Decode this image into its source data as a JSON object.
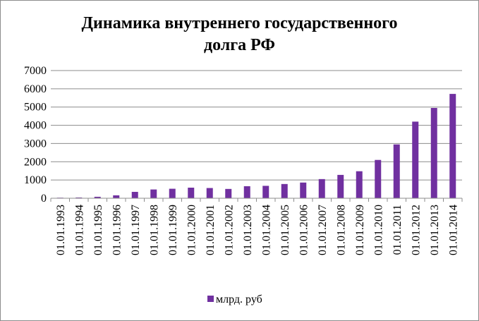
{
  "chart_data": {
    "type": "bar",
    "title_lines": [
      "Динамика внутреннего государственного",
      "долга РФ"
    ],
    "categories": [
      "01.01.1993",
      "01.01.1994",
      "01.01.1995",
      "01.01.1996",
      "01.01.1997",
      "01.01.1998",
      "01.01.1999",
      "01.01.2000",
      "01.01.2001",
      "01.01.2002",
      "01.01.2003",
      "01.01.2004",
      "01.01.2005",
      "01.01.2006",
      "01.01.2007",
      "01.01.2008",
      "01.01.2009",
      "01.01.2010",
      "01.01.2011",
      "01.01.2012",
      "01.01.2013",
      "01.01.2014"
    ],
    "series": [
      {
        "name": "млрд. руб",
        "color": "#7030a0",
        "values": [
          30,
          40,
          80,
          160,
          350,
          480,
          520,
          580,
          560,
          510,
          660,
          680,
          780,
          860,
          1050,
          1280,
          1480,
          2100,
          2950,
          4200,
          4950,
          5720
        ]
      }
    ],
    "yticks": [
      "0",
      "1000",
      "2000",
      "3000",
      "4000",
      "5000",
      "6000",
      "7000"
    ],
    "ylim": [
      0,
      7000
    ],
    "grid": true,
    "legend_position": "bottom"
  }
}
